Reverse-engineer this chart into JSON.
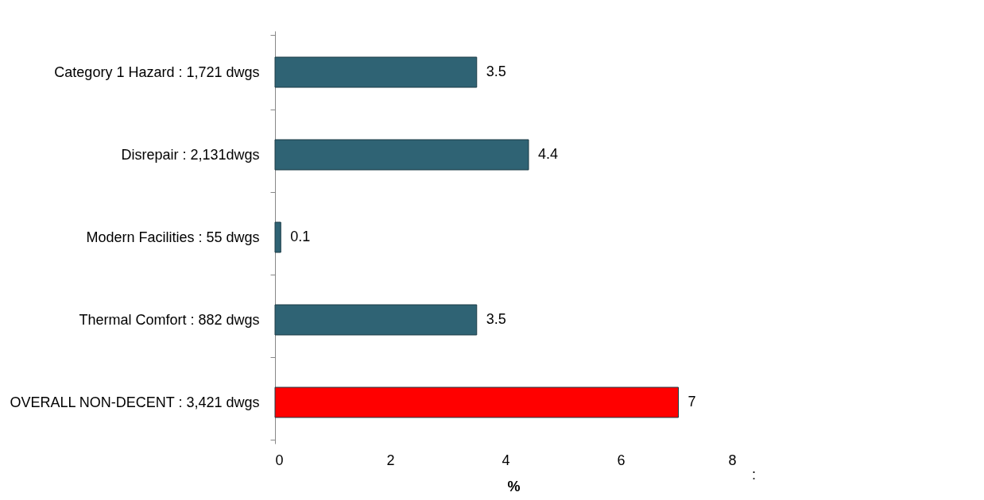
{
  "chart_data": {
    "type": "bar",
    "orientation": "horizontal",
    "categories": [
      "Category 1 Hazard : 1,721 dwgs",
      "Disrepair : 2,131dwgs",
      "Modern Facilities : 55 dwgs",
      "Thermal Comfort : 882 dwgs",
      "OVERALL NON-DECENT : 3,421 dwgs"
    ],
    "values": [
      3.5,
      4.4,
      0.1,
      3.5,
      7
    ],
    "colors": [
      "#2f6374",
      "#2f6374",
      "#2f6374",
      "#2f6374",
      "#ff0000"
    ],
    "data_labels": true,
    "xlabel": "%",
    "xlim": [
      0,
      8
    ],
    "xticks": [
      0,
      2,
      4,
      6,
      8
    ],
    "grid": false,
    "annotations": [
      ":"
    ]
  }
}
